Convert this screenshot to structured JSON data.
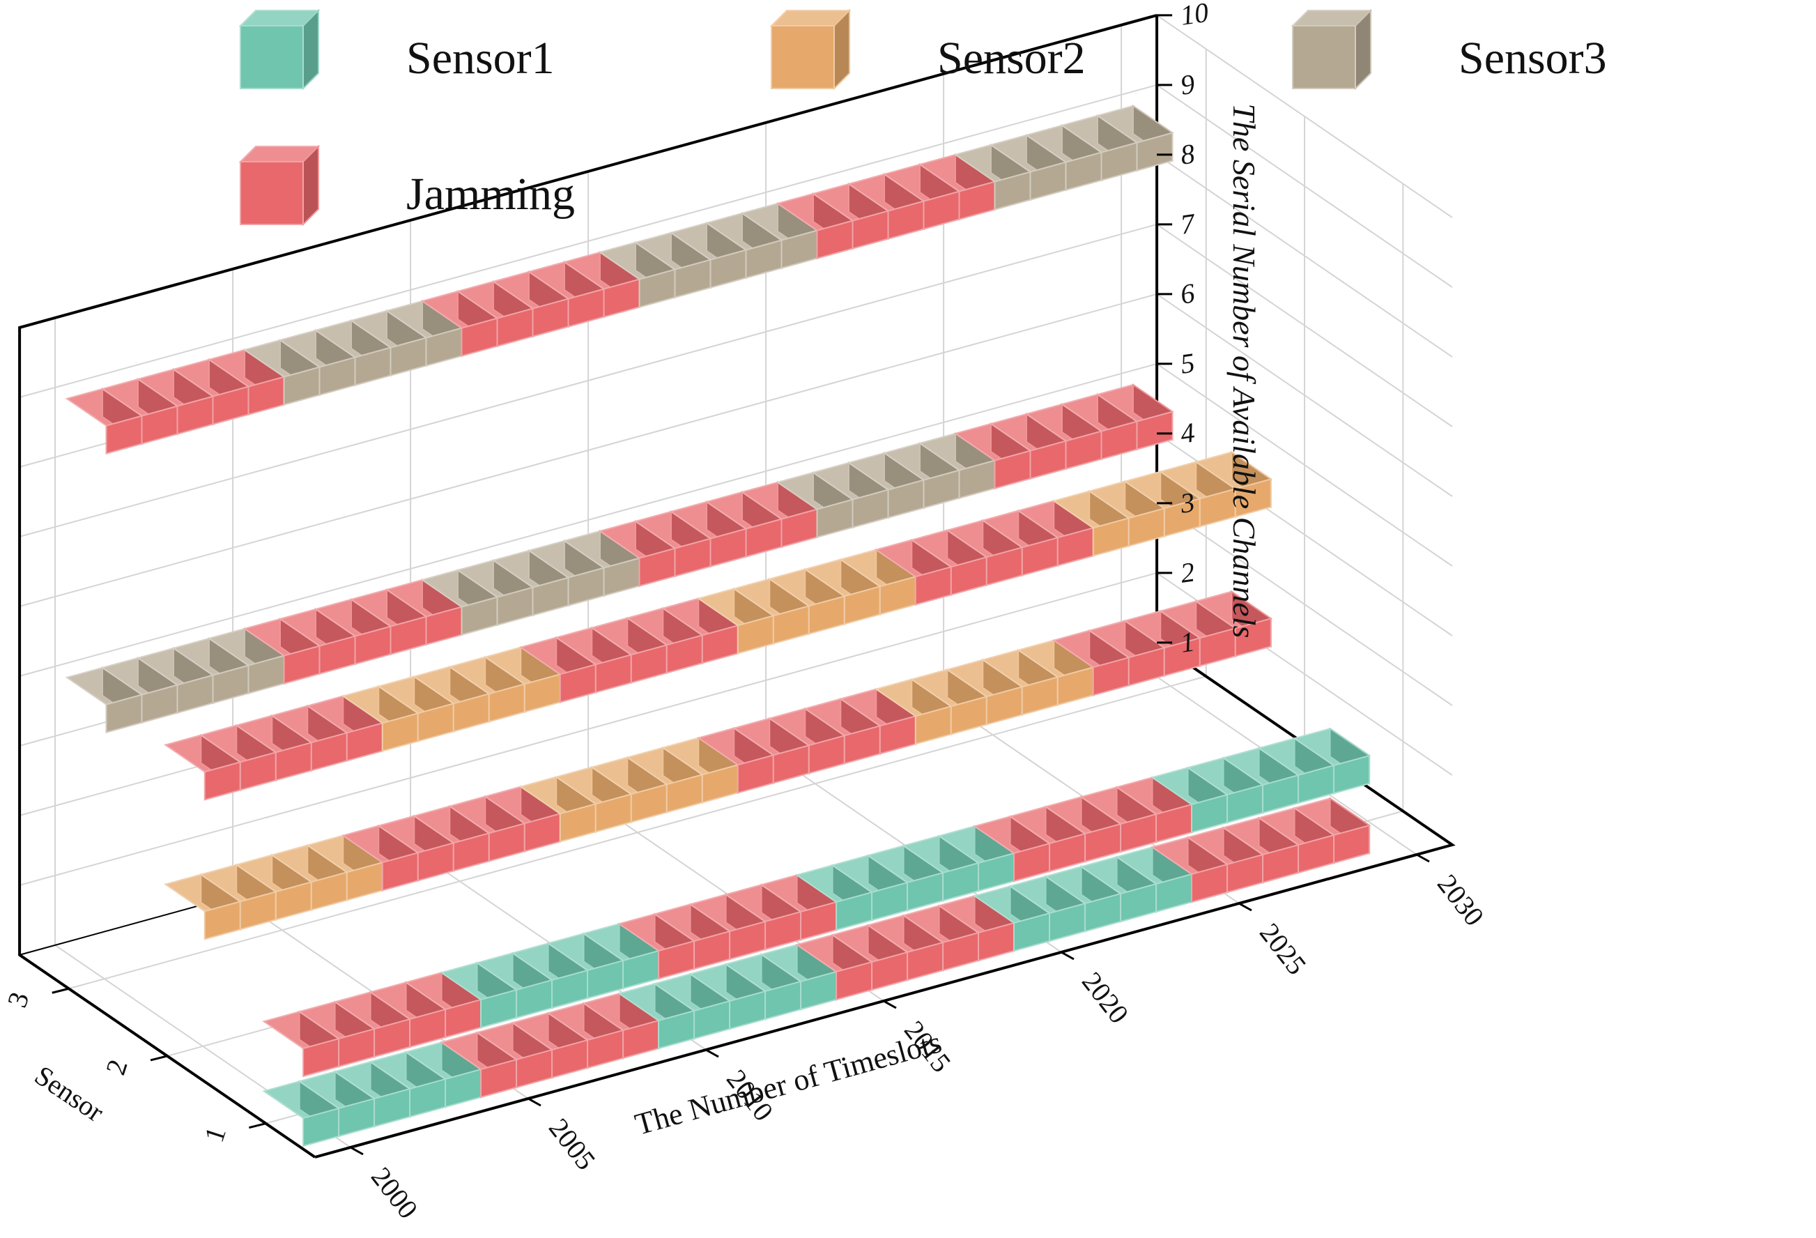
{
  "chart_data": {
    "type": "3d-bar",
    "title": "",
    "xlabel": "The Number of Timeslots",
    "ylabel": "Sensor",
    "zlabel": "The Serial Number of Available Channels",
    "x_ticks": [
      "2000",
      "2005",
      "2010",
      "2015",
      "2020",
      "2025",
      "2030"
    ],
    "y_ticks": [
      "1",
      "2",
      "3"
    ],
    "z_ticks": [
      "1",
      "2",
      "3",
      "4",
      "5",
      "6",
      "7",
      "8",
      "9",
      "10"
    ],
    "xlim": [
      1999,
      2031
    ],
    "ylim": [
      0.5,
      3.5
    ],
    "zlim": [
      1,
      10
    ],
    "legend": {
      "position": "top-left",
      "entries": [
        {
          "name": "Sensor1",
          "color": "#6fc5ad"
        },
        {
          "name": "Sensor2",
          "color": "#e6a96b"
        },
        {
          "name": "Sensor3",
          "color": "#b4a893"
        },
        {
          "name": "Jamming",
          "color": "#e8686c"
        }
      ]
    },
    "colors": {
      "Sensor1": "#6fc5ad",
      "Sensor2": "#e6a96b",
      "Sensor3": "#b4a893",
      "Jamming": "#e8686c"
    },
    "rows": [
      {
        "sensor": 3,
        "channel": 9,
        "x_start": 2000,
        "segments": [
          {
            "label": "Jamming",
            "count": 5
          },
          {
            "label": "Sensor3",
            "count": 5
          },
          {
            "label": "Jamming",
            "count": 5
          },
          {
            "label": "Sensor3",
            "count": 5
          },
          {
            "label": "Jamming",
            "count": 5
          },
          {
            "label": "Sensor3",
            "count": 5
          }
        ]
      },
      {
        "sensor": 3,
        "channel": 5,
        "x_start": 2000,
        "segments": [
          {
            "label": "Sensor3",
            "count": 5
          },
          {
            "label": "Jamming",
            "count": 5
          },
          {
            "label": "Sensor3",
            "count": 5
          },
          {
            "label": "Jamming",
            "count": 5
          },
          {
            "label": "Sensor3",
            "count": 5
          },
          {
            "label": "Jamming",
            "count": 5
          }
        ]
      },
      {
        "sensor": 2,
        "channel": 5,
        "x_start": 2000,
        "segments": [
          {
            "label": "Jamming",
            "count": 5
          },
          {
            "label": "Sensor2",
            "count": 5
          },
          {
            "label": "Jamming",
            "count": 5
          },
          {
            "label": "Sensor2",
            "count": 5
          },
          {
            "label": "Jamming",
            "count": 5
          },
          {
            "label": "Sensor2",
            "count": 5
          }
        ]
      },
      {
        "sensor": 2,
        "channel": 3,
        "x_start": 2000,
        "segments": [
          {
            "label": "Sensor2",
            "count": 5
          },
          {
            "label": "Jamming",
            "count": 5
          },
          {
            "label": "Sensor2",
            "count": 5
          },
          {
            "label": "Jamming",
            "count": 5
          },
          {
            "label": "Sensor2",
            "count": 5
          },
          {
            "label": "Jamming",
            "count": 5
          }
        ]
      },
      {
        "sensor": 1,
        "channel": 2,
        "x_start": 2000,
        "segments": [
          {
            "label": "Jamming",
            "count": 5
          },
          {
            "label": "Sensor1",
            "count": 5
          },
          {
            "label": "Jamming",
            "count": 5
          },
          {
            "label": "Sensor1",
            "count": 5
          },
          {
            "label": "Jamming",
            "count": 5
          },
          {
            "label": "Sensor1",
            "count": 5
          }
        ]
      },
      {
        "sensor": 1,
        "channel": 1,
        "x_start": 2000,
        "segments": [
          {
            "label": "Sensor1",
            "count": 5
          },
          {
            "label": "Jamming",
            "count": 5
          },
          {
            "label": "Sensor1",
            "count": 5
          },
          {
            "label": "Jamming",
            "count": 5
          },
          {
            "label": "Sensor1",
            "count": 5
          },
          {
            "label": "Jamming",
            "count": 5
          }
        ]
      }
    ]
  }
}
